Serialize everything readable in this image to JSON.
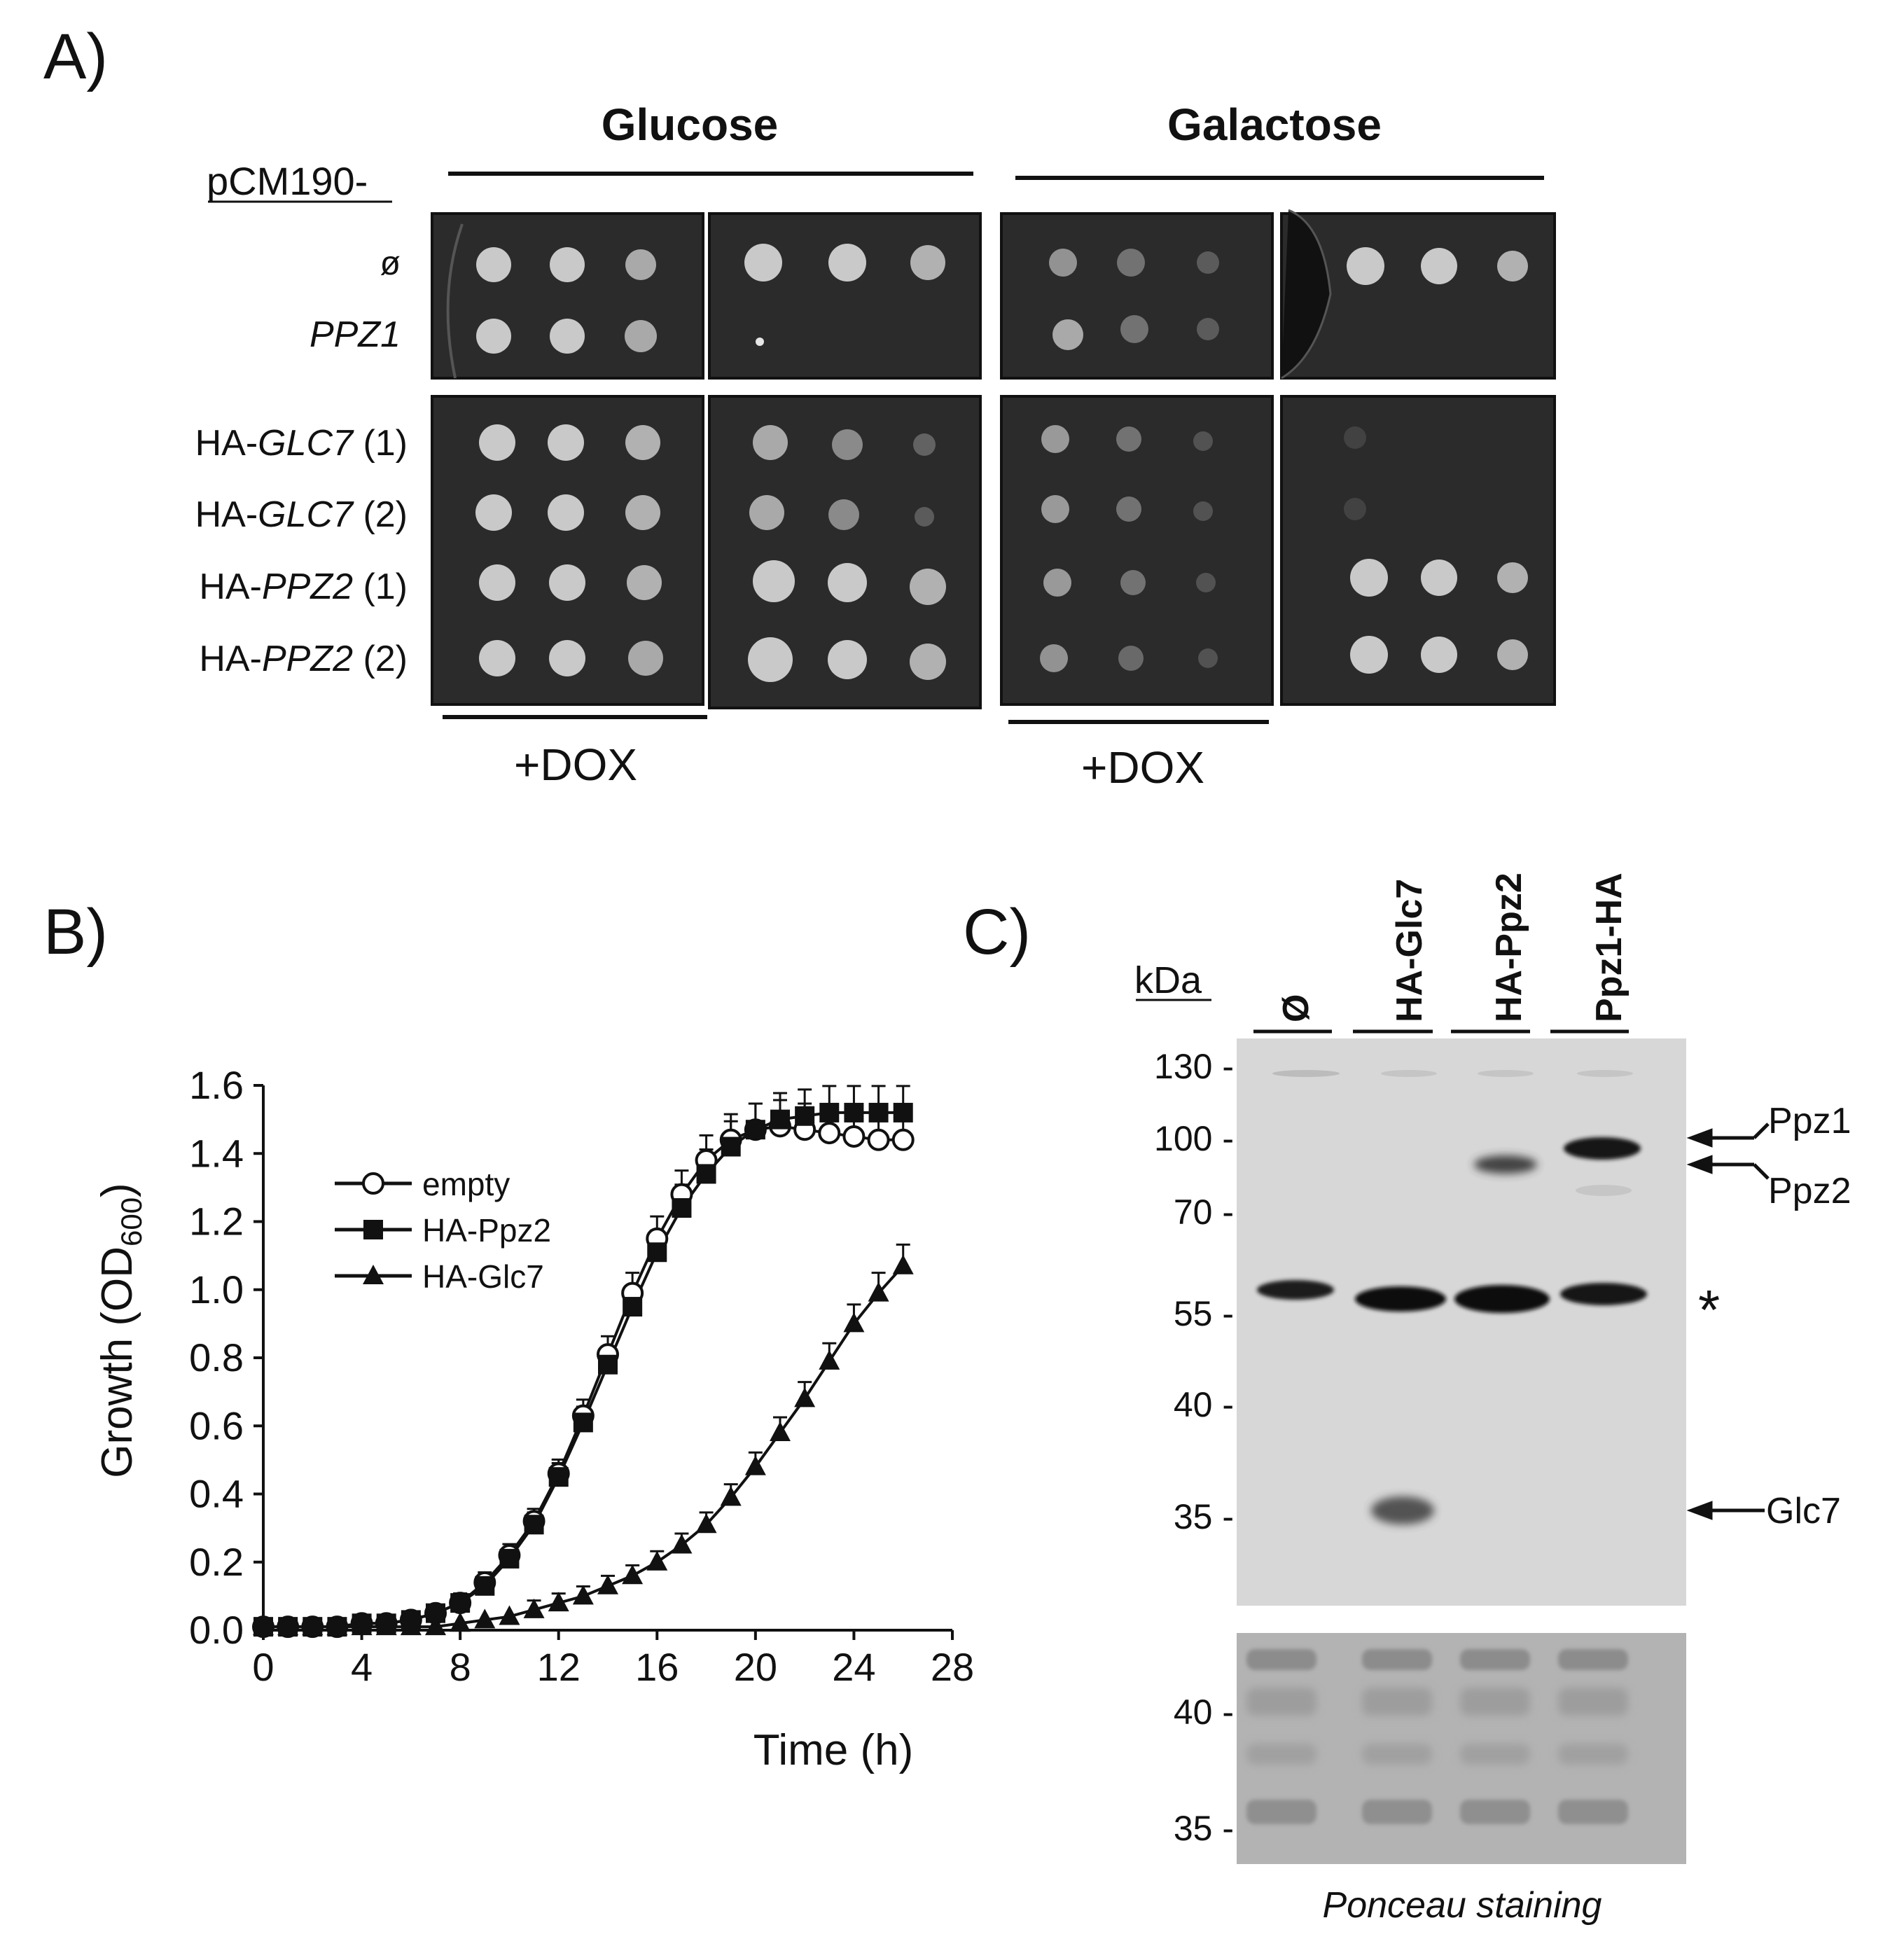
{
  "panel_a": {
    "label": "A)",
    "media": [
      "Glucose",
      "Galactose"
    ],
    "plasmid_label": "pCM190-",
    "row_labels": [
      {
        "pre": "ø",
        "ital": "",
        "post": ""
      },
      {
        "pre": "",
        "ital": "PPZ1",
        "post": ""
      },
      {
        "pre": "HA-",
        "ital": "GLC7",
        "post": " (1)"
      },
      {
        "pre": "HA-",
        "ital": "GLC7",
        "post": " (2)"
      },
      {
        "pre": "HA-",
        "ital": "PPZ2",
        "post": " (1)"
      },
      {
        "pre": "HA-",
        "ital": "PPZ2",
        "post": " (2)"
      }
    ],
    "treatment_label": "+DOX"
  },
  "panel_b": {
    "label": "B)",
    "ylabel": "Growth (OD",
    "ylabel_sub": "600",
    "ylabel_close": ")",
    "xlabel": "Time (h)"
  },
  "chart_data": {
    "type": "line",
    "xlabel": "Time (h)",
    "ylabel": "Growth (OD600)",
    "xlim": [
      0,
      28
    ],
    "ylim": [
      0,
      1.6
    ],
    "xticks": [
      "0",
      "4",
      "8",
      "12",
      "16",
      "20",
      "24",
      "28"
    ],
    "yticks": [
      "0.0",
      "0.2",
      "0.4",
      "0.6",
      "0.8",
      "1.0",
      "1.2",
      "1.4",
      "1.6"
    ],
    "legend_position": "top-left",
    "series": [
      {
        "name": "empty",
        "marker": "open-circle",
        "x": [
          0,
          1,
          2,
          3,
          4,
          5,
          6,
          7,
          8,
          9,
          10,
          11,
          12,
          13,
          14,
          15,
          16,
          17,
          18,
          19,
          20,
          21,
          22,
          23,
          24,
          25,
          26
        ],
        "y": [
          0.01,
          0.01,
          0.01,
          0.01,
          0.02,
          0.02,
          0.03,
          0.05,
          0.08,
          0.14,
          0.22,
          0.32,
          0.46,
          0.63,
          0.81,
          0.99,
          1.15,
          1.28,
          1.38,
          1.44,
          1.47,
          1.48,
          1.47,
          1.46,
          1.45,
          1.44,
          1.44
        ]
      },
      {
        "name": "HA-Ppz2",
        "marker": "filled-square",
        "x": [
          0,
          1,
          2,
          3,
          4,
          5,
          6,
          7,
          8,
          9,
          10,
          11,
          12,
          13,
          14,
          15,
          16,
          17,
          18,
          19,
          20,
          21,
          22,
          23,
          24,
          25,
          26
        ],
        "y": [
          0.01,
          0.01,
          0.01,
          0.01,
          0.02,
          0.02,
          0.03,
          0.05,
          0.08,
          0.13,
          0.21,
          0.31,
          0.45,
          0.61,
          0.78,
          0.95,
          1.11,
          1.24,
          1.34,
          1.42,
          1.47,
          1.5,
          1.51,
          1.52,
          1.52,
          1.52,
          1.52
        ]
      },
      {
        "name": "HA-Glc7",
        "marker": "filled-triangle",
        "x": [
          0,
          1,
          2,
          3,
          4,
          5,
          6,
          7,
          8,
          9,
          10,
          11,
          12,
          13,
          14,
          15,
          16,
          17,
          18,
          19,
          20,
          21,
          22,
          23,
          24,
          25,
          26
        ],
        "y": [
          0.01,
          0.01,
          0.01,
          0.01,
          0.01,
          0.01,
          0.01,
          0.01,
          0.02,
          0.03,
          0.04,
          0.06,
          0.08,
          0.1,
          0.13,
          0.16,
          0.2,
          0.25,
          0.31,
          0.39,
          0.48,
          0.58,
          0.68,
          0.79,
          0.9,
          0.99,
          1.07
        ]
      }
    ]
  },
  "panel_c": {
    "label": "C)",
    "unit_label": "kDa",
    "lanes": [
      "Ø",
      "HA-Glc7",
      "HA-Ppz2",
      "Ppz1-HA"
    ],
    "markers": [
      "130 -",
      "100 -",
      "70 -",
      "55 -",
      "40 -",
      "35 -"
    ],
    "band_labels": [
      "Ppz1",
      "Ppz2",
      "Glc7"
    ],
    "asterisk": "*",
    "ponceau_markers": [
      "40 -",
      "35 -"
    ],
    "ponceau_caption": "Ponceau staining"
  }
}
